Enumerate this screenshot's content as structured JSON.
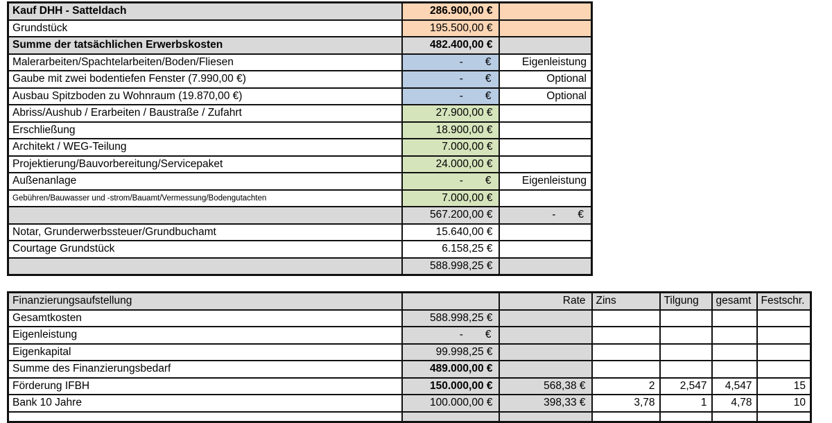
{
  "colors": {
    "white": "#ffffff",
    "grey": "#d9d9d9",
    "orange": "#fbd5b4",
    "blue": "#b8cce4",
    "green": "#d6e4bc",
    "border": "#111111"
  },
  "cost_table": {
    "rows": [
      {
        "label": "Kauf DHH - Satteldach",
        "amount": "286.900,00 €",
        "note": "",
        "label_bg": "grey",
        "amount_bg": "orange",
        "note_bg": "orange",
        "label_bold": true,
        "amount_bold": true
      },
      {
        "label": "Grundstück",
        "amount": "195.500,00 €",
        "note": "",
        "label_bg": "white",
        "amount_bg": "orange",
        "note_bg": "orange"
      },
      {
        "label": "Summe der tatsächlichen Erwerbskosten",
        "amount": "482.400,00 €",
        "note": "",
        "label_bg": "grey",
        "amount_bg": "grey",
        "note_bg": "grey",
        "label_bold": true,
        "amount_bold": true
      },
      {
        "label": "Malerarbeiten/Spachtelarbeiten/Boden/Fliesen",
        "amount": "-",
        "note": "Eigenleistung",
        "label_bg": "white",
        "amount_bg": "blue",
        "note_bg": "white"
      },
      {
        "label": "Gaube mit zwei bodentiefen Fenster (7.990,00 €)",
        "amount": "-",
        "note": "Optional",
        "label_bg": "white",
        "amount_bg": "blue",
        "note_bg": "white"
      },
      {
        "label": "Ausbau Spitzboden zu Wohnraum (19.870,00 €)",
        "amount": "-",
        "note": "Optional",
        "label_bg": "white",
        "amount_bg": "blue",
        "note_bg": "white"
      },
      {
        "label": "Abriss/Aushub / Erarbeiten / Baustraße / Zufahrt",
        "amount": "27.900,00 €",
        "note": "",
        "label_bg": "white",
        "amount_bg": "green",
        "note_bg": "white"
      },
      {
        "label": "Erschließung",
        "amount": "18.900,00 €",
        "note": "",
        "label_bg": "white",
        "amount_bg": "green",
        "note_bg": "white"
      },
      {
        "label": "Architekt / WEG-Teilung",
        "amount": "7.000,00 €",
        "note": "",
        "label_bg": "white",
        "amount_bg": "green",
        "note_bg": "white"
      },
      {
        "label": "Projektierung/Bauvorbereitung/Servicepaket",
        "amount": "24.000,00 €",
        "note": "",
        "label_bg": "white",
        "amount_bg": "green",
        "note_bg": "white"
      },
      {
        "label": "Außenanlage",
        "amount": "-",
        "note": "Eigenleistung",
        "label_bg": "white",
        "amount_bg": "green",
        "note_bg": "white"
      },
      {
        "label": "Gebühren/Bauwasser und -strom/Bauamt/Vermessung/Bodengutachten",
        "amount": "7.000,00 €",
        "note": "",
        "label_bg": "white",
        "amount_bg": "green",
        "note_bg": "white",
        "label_small": true
      },
      {
        "label": "",
        "amount": "567.200,00 €",
        "note": "-",
        "label_bg": "grey",
        "amount_bg": "grey",
        "note_bg": "grey"
      },
      {
        "label": "Notar, Grunderwerbssteuer/Grundbuchamt",
        "amount": "15.640,00 €",
        "note": "",
        "label_bg": "white",
        "amount_bg": "white",
        "note_bg": "white"
      },
      {
        "label": "Courtage Grundstück",
        "amount": "6.158,25 €",
        "note": "",
        "label_bg": "white",
        "amount_bg": "white",
        "note_bg": "white"
      },
      {
        "label": "",
        "amount": "588.998,25 €",
        "note": "",
        "label_bg": "grey",
        "amount_bg": "grey",
        "note_bg": "grey"
      }
    ]
  },
  "financing_table": {
    "header": {
      "label": "Finanzierungsaufstellung",
      "rate": "Rate",
      "zins": "Zins",
      "tilgung": "Tilgung",
      "gesamt": "gesamt",
      "festschr": "Festschr."
    },
    "rows": [
      {
        "label": "Gesamtkosten",
        "amount": "588.998,25 €",
        "rate": "",
        "zins": "",
        "tilgung": "",
        "gesamt": "",
        "festschr": ""
      },
      {
        "label": "Eigenleistung",
        "amount": "-",
        "rate": "",
        "zins": "",
        "tilgung": "",
        "gesamt": "",
        "festschr": ""
      },
      {
        "label": "Eigenkapital",
        "amount": "99.998,25 €",
        "rate": "",
        "zins": "",
        "tilgung": "",
        "gesamt": "",
        "festschr": ""
      },
      {
        "label": "Summe des Finanzierungsbedarf",
        "amount": "489.000,00 €",
        "amount_bold": true,
        "rate": "",
        "zins": "",
        "tilgung": "",
        "gesamt": "",
        "festschr": ""
      },
      {
        "label": "Förderung IFBH",
        "amount": "150.000,00 €",
        "amount_bold": true,
        "rate": "568,38 €",
        "zins": "2",
        "tilgung": "2,547",
        "gesamt": "4,547",
        "festschr": "15"
      },
      {
        "label": "Bank 10 Jahre",
        "amount": "100.000,00 €",
        "rate": "398,33 €",
        "zins": "3,78",
        "tilgung": "1",
        "gesamt": "4,78",
        "festschr": "10"
      },
      {
        "label": "",
        "amount": "",
        "rate": "",
        "zins": "",
        "tilgung": "",
        "gesamt": "",
        "festschr": "",
        "partial": true
      }
    ]
  }
}
